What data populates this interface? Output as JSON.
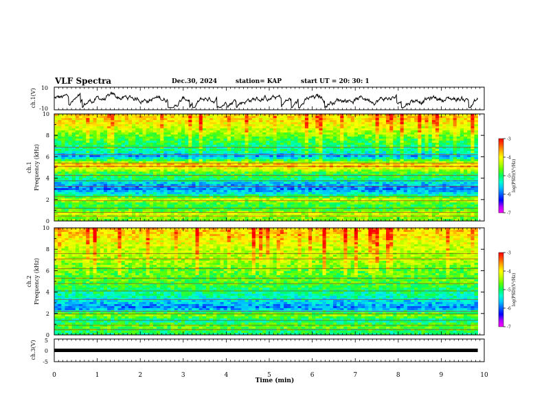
{
  "header": {
    "title": "VLF Spectra",
    "date": "Dec.30, 2024",
    "station": "station= KAP",
    "start_ut": "start  UT  =   20: 30: 1"
  },
  "colors": {
    "trace": "#000000",
    "axis": "#000000",
    "colormap": [
      "#ff00ff",
      "#b000ff",
      "#0000ff",
      "#0060ff",
      "#00c0ff",
      "#00ffd0",
      "#00ff60",
      "#60ff00",
      "#c0ff00",
      "#ffff00",
      "#ffb000",
      "#ff5000",
      "#ff0000"
    ]
  },
  "chart_data": [
    {
      "type": "line",
      "name": "ch1-waveform",
      "ylabel": "ch.1(V)",
      "ylim": [
        -10,
        10
      ],
      "yticks": [
        "10",
        "-10"
      ],
      "xlim": [
        0,
        10
      ]
    },
    {
      "type": "heatmap",
      "name": "ch1-spectrogram",
      "ylabel": "ch.1\nFrequency (kHz)",
      "ylabel_lines": [
        "ch.1",
        "Frequency (kHz)"
      ],
      "ylim": [
        0,
        10
      ],
      "yticks": [
        "0",
        "2",
        "4",
        "6",
        "8",
        "10"
      ],
      "xlim": [
        0,
        10
      ],
      "data_end_min": 9.85,
      "colorbar": {
        "label": "log(PSD)(V²/Hz)",
        "range": [
          -7,
          -3
        ],
        "ticks": [
          "-3",
          "-4",
          "-5",
          "-6",
          "-7"
        ]
      },
      "band_levels_khz": [
        {
          "f": 0.3,
          "v": -4.6
        },
        {
          "f": 0.6,
          "v": -4.2
        },
        {
          "f": 1.0,
          "v": -4.8
        },
        {
          "f": 1.5,
          "v": -4.9
        },
        {
          "f": 2.0,
          "v": -4.3
        },
        {
          "f": 2.5,
          "v": -5.3
        },
        {
          "f": 3.0,
          "v": -5.9
        },
        {
          "f": 3.5,
          "v": -5.6
        },
        {
          "f": 4.0,
          "v": -5.0
        },
        {
          "f": 4.5,
          "v": -4.8
        },
        {
          "f": 5.2,
          "v": -3.6
        },
        {
          "f": 6.0,
          "v": -5.8
        },
        {
          "f": 6.5,
          "v": -5.2
        },
        {
          "f": 7.5,
          "v": -4.9
        },
        {
          "f": 8.5,
          "v": -4.3
        },
        {
          "f": 9.5,
          "v": -3.9
        }
      ]
    },
    {
      "type": "heatmap",
      "name": "ch2-spectrogram",
      "ylabel": "ch.2\nFrequency (kHz)",
      "ylabel_lines": [
        "ch.2",
        "Frequency (kHz)"
      ],
      "ylim": [
        0,
        10
      ],
      "yticks": [
        "0",
        "2",
        "4",
        "6",
        "8",
        "10"
      ],
      "xlim": [
        0,
        10
      ],
      "data_end_min": 9.85,
      "colorbar": {
        "label": "log(PSD)(V²/Hz)",
        "range": [
          -7,
          -3
        ],
        "ticks": [
          "-3",
          "-4",
          "-5",
          "-6",
          "-7"
        ]
      },
      "band_levels_khz": [
        {
          "f": 0.3,
          "v": -5.0
        },
        {
          "f": 0.8,
          "v": -4.6
        },
        {
          "f": 1.3,
          "v": -5.2
        },
        {
          "f": 1.9,
          "v": -4.5
        },
        {
          "f": 2.5,
          "v": -5.9
        },
        {
          "f": 3.0,
          "v": -5.6
        },
        {
          "f": 3.5,
          "v": -5.3
        },
        {
          "f": 4.2,
          "v": -5.0
        },
        {
          "f": 5.0,
          "v": -4.7
        },
        {
          "f": 6.0,
          "v": -4.7
        },
        {
          "f": 7.0,
          "v": -4.4
        },
        {
          "f": 8.0,
          "v": -4.3
        },
        {
          "f": 9.0,
          "v": -4.0
        },
        {
          "f": 9.8,
          "v": -3.8
        }
      ]
    },
    {
      "type": "line",
      "name": "ch3-signal",
      "ylabel": "ch.3(V)",
      "ylim": [
        -5,
        5
      ],
      "yticks": [
        "5",
        "0",
        "-5"
      ],
      "level": 0,
      "xlim": [
        0,
        10
      ],
      "xlabel": "Time  (min)",
      "xticks": [
        "0",
        "1",
        "2",
        "3",
        "4",
        "5",
        "6",
        "7",
        "8",
        "9",
        "10"
      ]
    }
  ]
}
